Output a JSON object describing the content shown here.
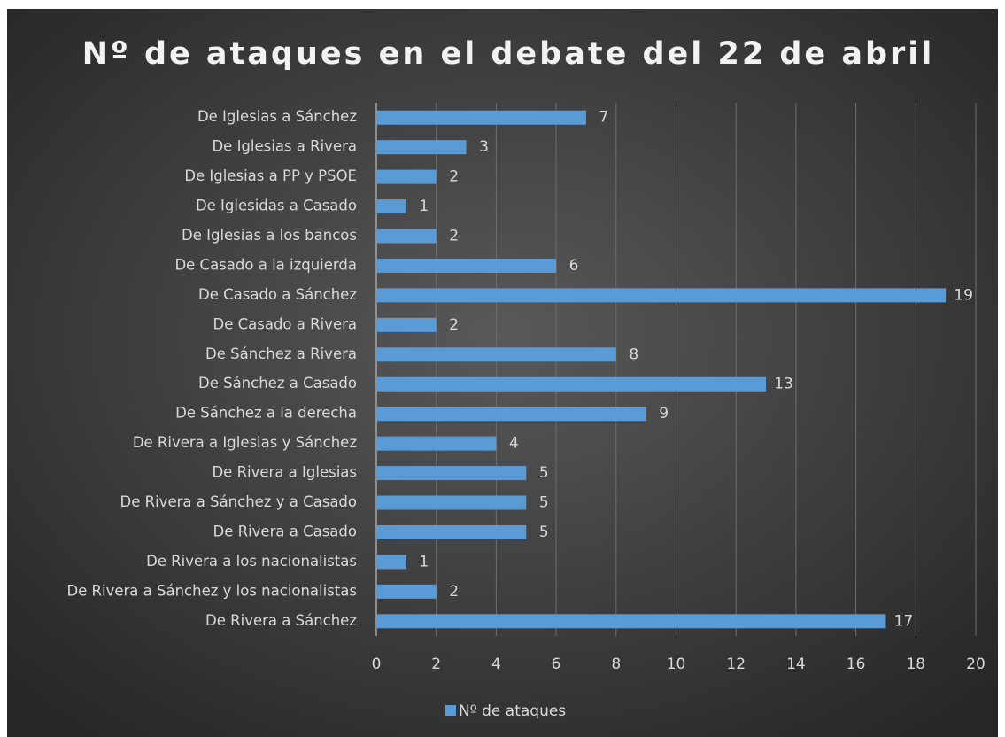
{
  "chart_data": {
    "type": "bar",
    "orientation": "horizontal",
    "title": "Nº de ataques en el debate del 22 de abril",
    "categories": [
      "De Iglesias a Sánchez",
      "De Iglesias a Rivera",
      "De Iglesias a PP y PSOE",
      "De Iglesidas a Casado",
      "De Iglesias a los bancos",
      "De Casado a la izquierda",
      "De Casado a Sánchez",
      "De Casado a Rivera",
      "De Sánchez a Rivera",
      "De Sánchez a Casado",
      "De Sánchez a la derecha",
      "De Rivera a Iglesias y Sánchez",
      "De Rivera a Iglesias",
      "De Rivera a Sánchez y a Casado",
      "De Rivera a Casado",
      "De Rivera a los nacionalistas",
      "De Rivera a Sánchez y los nacionalistas",
      "De Rivera a Sánchez"
    ],
    "series": [
      {
        "name": "Nº de ataques",
        "color": "#5b9bd5",
        "values": [
          7,
          3,
          2,
          1,
          2,
          6,
          19,
          2,
          8,
          13,
          9,
          4,
          5,
          5,
          5,
          1,
          2,
          17
        ]
      }
    ],
    "xlim": [
      0,
      20
    ],
    "xticks": [
      0,
      2,
      4,
      6,
      8,
      10,
      12,
      14,
      16,
      18,
      20
    ],
    "grid": true,
    "legend": "bottom"
  }
}
